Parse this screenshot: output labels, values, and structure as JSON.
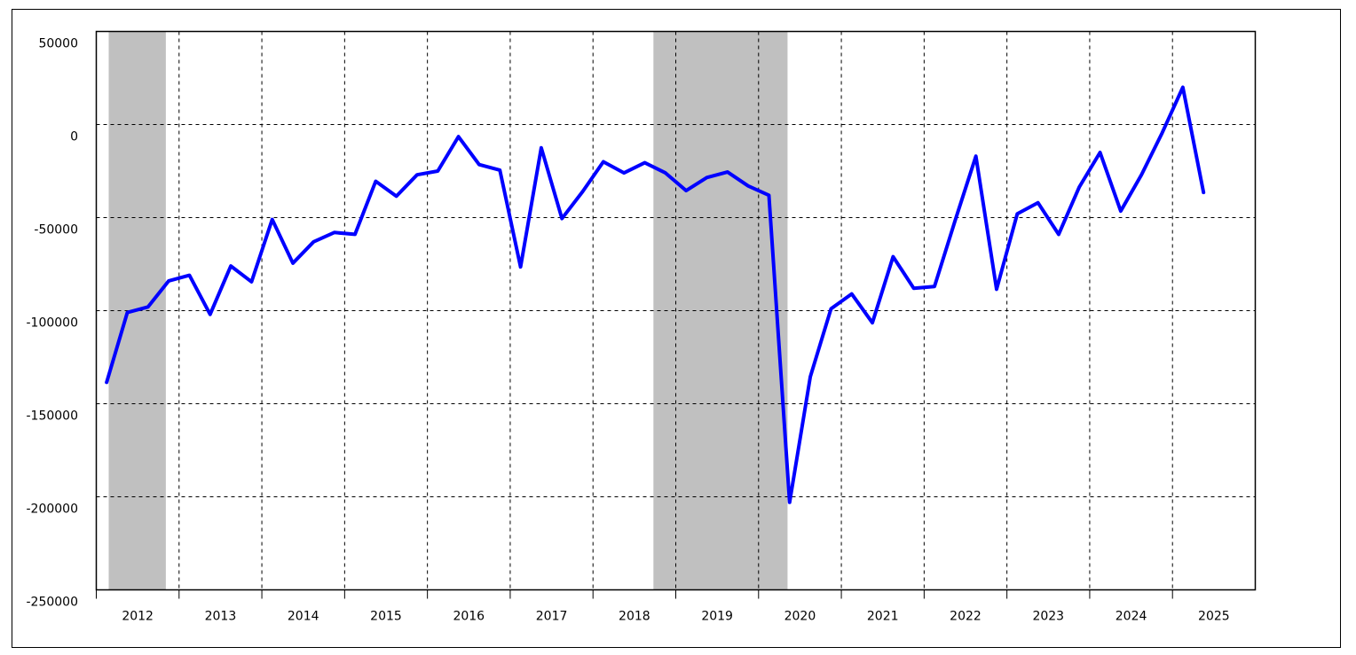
{
  "chart_data": {
    "type": "line",
    "x": [
      2012.125,
      2012.375,
      2012.625,
      2012.875,
      2013.125,
      2013.375,
      2013.625,
      2013.875,
      2014.125,
      2014.375,
      2014.625,
      2014.875,
      2015.125,
      2015.375,
      2015.625,
      2015.875,
      2016.125,
      2016.375,
      2016.625,
      2016.875,
      2017.125,
      2017.375,
      2017.625,
      2017.875,
      2018.125,
      2018.375,
      2018.625,
      2018.875,
      2019.125,
      2019.375,
      2019.625,
      2019.875,
      2020.125,
      2020.375,
      2020.625,
      2020.875,
      2021.125,
      2021.375,
      2021.625,
      2021.875,
      2022.125,
      2022.375,
      2022.625,
      2022.875,
      2023.125,
      2023.375,
      2023.625,
      2023.875,
      2024.125,
      2024.375,
      2024.625,
      2024.875,
      2025.125,
      2025.375
    ],
    "series": [
      {
        "color": "#0000ff",
        "values": [
          -138500,
          -101000,
          -98000,
          -84000,
          -81000,
          -102000,
          -76000,
          -84500,
          -51000,
          -74500,
          -63000,
          -58000,
          -59000,
          -30500,
          -38500,
          -27000,
          -25000,
          -6500,
          -21500,
          -24500,
          -76500,
          -12500,
          -50500,
          -36000,
          -20000,
          -26000,
          -20500,
          -26000,
          -35500,
          -28500,
          -25500,
          -33000,
          -38000,
          -203000,
          -135500,
          -99000,
          -91000,
          -106500,
          -71000,
          -88000,
          -87000,
          -51500,
          -17000,
          -88500,
          -48000,
          -42000,
          -59000,
          -33500,
          -15000,
          -46500,
          -27000,
          -4500,
          20000,
          -36500
        ]
      }
    ],
    "xlim": [
      2012,
      2026
    ],
    "xticks": [
      {
        "value": 2012,
        "label": "2012"
      },
      {
        "value": 2013,
        "label": "2013"
      },
      {
        "value": 2014,
        "label": "2014"
      },
      {
        "value": 2015,
        "label": "2015"
      },
      {
        "value": 2016,
        "label": "2016"
      },
      {
        "value": 2017,
        "label": "2017"
      },
      {
        "value": 2018,
        "label": "2018"
      },
      {
        "value": 2019,
        "label": "2019"
      },
      {
        "value": 2020,
        "label": "2020"
      },
      {
        "value": 2021,
        "label": "2021"
      },
      {
        "value": 2022,
        "label": "2022"
      },
      {
        "value": 2023,
        "label": "2023"
      },
      {
        "value": 2024,
        "label": "2024"
      },
      {
        "value": 2025,
        "label": "2025"
      }
    ],
    "ylim": [
      -250000,
      50000
    ],
    "yticks": [
      -250000,
      -200000,
      -150000,
      -100000,
      -50000,
      0,
      50000
    ],
    "shaded_ranges": [
      [
        2012.15,
        2012.84
      ],
      [
        2018.73,
        2020.35
      ]
    ],
    "shade_color": "#c0c0c0",
    "grid": true
  }
}
